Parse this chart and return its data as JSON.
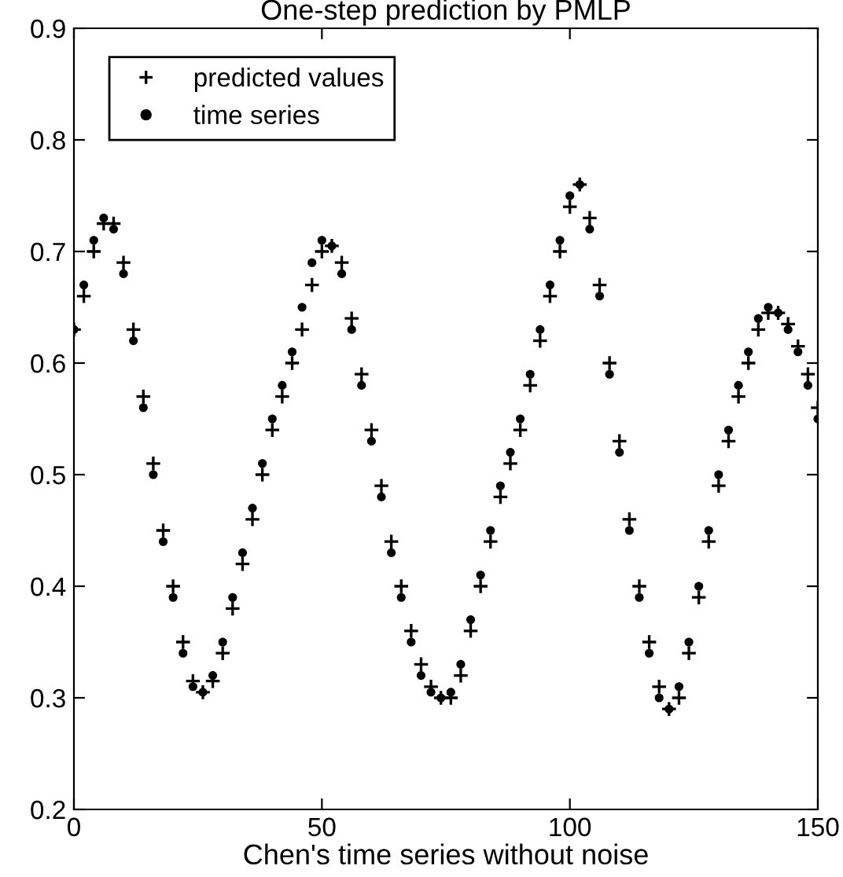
{
  "chart_data": {
    "type": "scatter",
    "title": "One-step prediction by PMLP",
    "xlabel": "Chen's time series without noise",
    "x": [
      0,
      2,
      4,
      6,
      8,
      10,
      12,
      14,
      16,
      18,
      20,
      22,
      24,
      26,
      28,
      30,
      32,
      34,
      36,
      38,
      40,
      42,
      44,
      46,
      48,
      50,
      52,
      54,
      56,
      58,
      60,
      62,
      64,
      66,
      68,
      70,
      72,
      74,
      76,
      78,
      80,
      82,
      84,
      86,
      88,
      90,
      92,
      94,
      96,
      98,
      100,
      102,
      104,
      106,
      108,
      110,
      112,
      114,
      116,
      118,
      120,
      122,
      124,
      126,
      128,
      130,
      132,
      134,
      136,
      138,
      140,
      142,
      144,
      146,
      148,
      150
    ],
    "series": [
      {
        "name": "predicted values",
        "color": "#000000",
        "marker": "cross",
        "values": [
          0.63,
          0.66,
          0.7,
          0.725,
          0.725,
          0.69,
          0.63,
          0.57,
          0.51,
          0.45,
          0.4,
          0.35,
          0.315,
          0.305,
          0.315,
          0.34,
          0.38,
          0.42,
          0.46,
          0.5,
          0.54,
          0.57,
          0.6,
          0.63,
          0.67,
          0.7,
          0.705,
          0.69,
          0.64,
          0.59,
          0.54,
          0.49,
          0.44,
          0.4,
          0.36,
          0.33,
          0.31,
          0.3,
          0.3,
          0.32,
          0.36,
          0.4,
          0.44,
          0.48,
          0.51,
          0.54,
          0.58,
          0.62,
          0.66,
          0.7,
          0.74,
          0.76,
          0.73,
          0.67,
          0.6,
          0.53,
          0.46,
          0.4,
          0.35,
          0.31,
          0.29,
          0.3,
          0.34,
          0.39,
          0.44,
          0.49,
          0.53,
          0.57,
          0.6,
          0.63,
          0.645,
          0.645,
          0.635,
          0.615,
          0.59,
          0.56
        ]
      },
      {
        "name": "time series",
        "color": "#000000",
        "marker": "circle",
        "values": [
          0.63,
          0.67,
          0.71,
          0.73,
          0.72,
          0.68,
          0.62,
          0.56,
          0.5,
          0.44,
          0.39,
          0.34,
          0.31,
          0.305,
          0.32,
          0.35,
          0.39,
          0.43,
          0.47,
          0.51,
          0.55,
          0.58,
          0.61,
          0.65,
          0.69,
          0.71,
          0.705,
          0.68,
          0.63,
          0.58,
          0.53,
          0.48,
          0.43,
          0.39,
          0.35,
          0.32,
          0.305,
          0.3,
          0.305,
          0.33,
          0.37,
          0.41,
          0.45,
          0.49,
          0.52,
          0.55,
          0.59,
          0.63,
          0.67,
          0.71,
          0.75,
          0.76,
          0.72,
          0.66,
          0.59,
          0.52,
          0.45,
          0.39,
          0.34,
          0.3,
          0.29,
          0.31,
          0.35,
          0.4,
          0.45,
          0.5,
          0.54,
          0.58,
          0.61,
          0.64,
          0.65,
          0.645,
          0.63,
          0.61,
          0.58,
          0.55
        ]
      }
    ],
    "xlim": [
      0,
      150
    ],
    "xticks": [
      0,
      50,
      100,
      150
    ],
    "ylim": [
      0.2,
      0.9
    ],
    "yticks": [
      0.2,
      0.3,
      0.4,
      0.5,
      0.6,
      0.7,
      0.8,
      0.9
    ],
    "grid": false,
    "legend": "top left"
  }
}
